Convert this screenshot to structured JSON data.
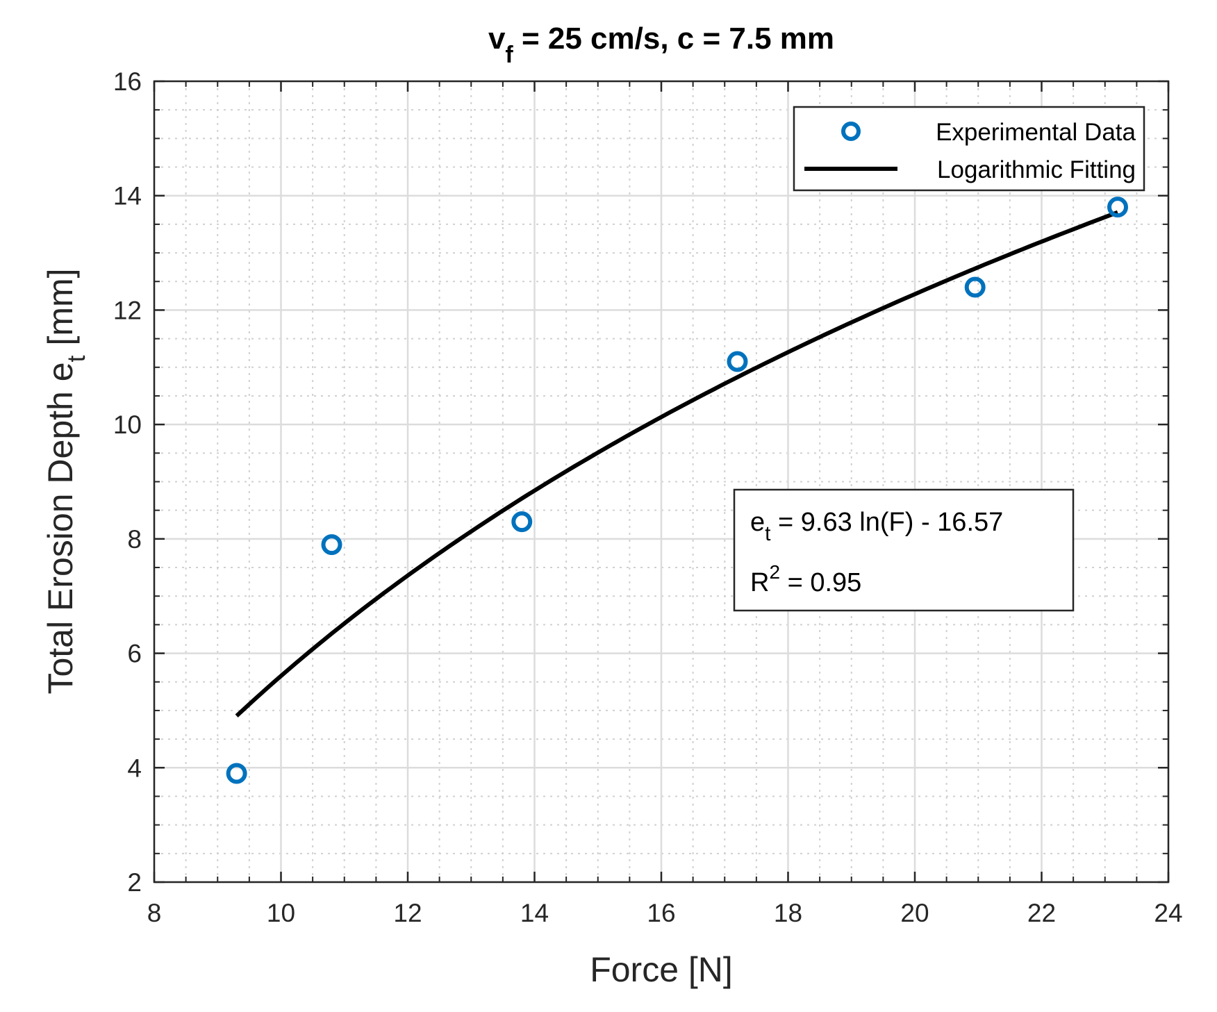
{
  "chart_data": {
    "type": "scatter",
    "title_parts": {
      "v": "v",
      "f": "f",
      "rest": " = 25 cm/s, c = 7.5 mm"
    },
    "xlabel": "Force [N]",
    "ylabel_parts": {
      "main": "Total Erosion Depth e",
      "sub": "t",
      "unit": " [mm]"
    },
    "xlim": [
      8,
      24
    ],
    "ylim": [
      2,
      16
    ],
    "x_ticks": [
      "8",
      "10",
      "12",
      "14",
      "16",
      "18",
      "20",
      "22",
      "24"
    ],
    "y_ticks": [
      "2",
      "4",
      "6",
      "8",
      "10",
      "12",
      "14",
      "16"
    ],
    "grid": true,
    "minor_grid": true,
    "legend_position": "top-right",
    "series": [
      {
        "name": "Experimental Data",
        "kind": "scatter",
        "marker": "circle-open",
        "color": "#0072BD",
        "x": [
          9.3,
          10.8,
          13.8,
          17.2,
          20.95,
          23.2
        ],
        "y": [
          3.9,
          7.9,
          8.3,
          11.1,
          12.4,
          13.8
        ]
      },
      {
        "name": "Logarithmic Fitting",
        "kind": "line",
        "color": "#000000",
        "model": {
          "a": 9.63,
          "b": -16.57
        },
        "x_range": [
          9.3,
          23.2
        ]
      }
    ],
    "annotation": {
      "line1_parts": {
        "e": "e",
        "sub": "t",
        "rest": " = 9.63 ln(F) - 16.57"
      },
      "line2_parts": {
        "r": "R",
        "sup": "2",
        "rest": " = 0.95"
      }
    }
  }
}
